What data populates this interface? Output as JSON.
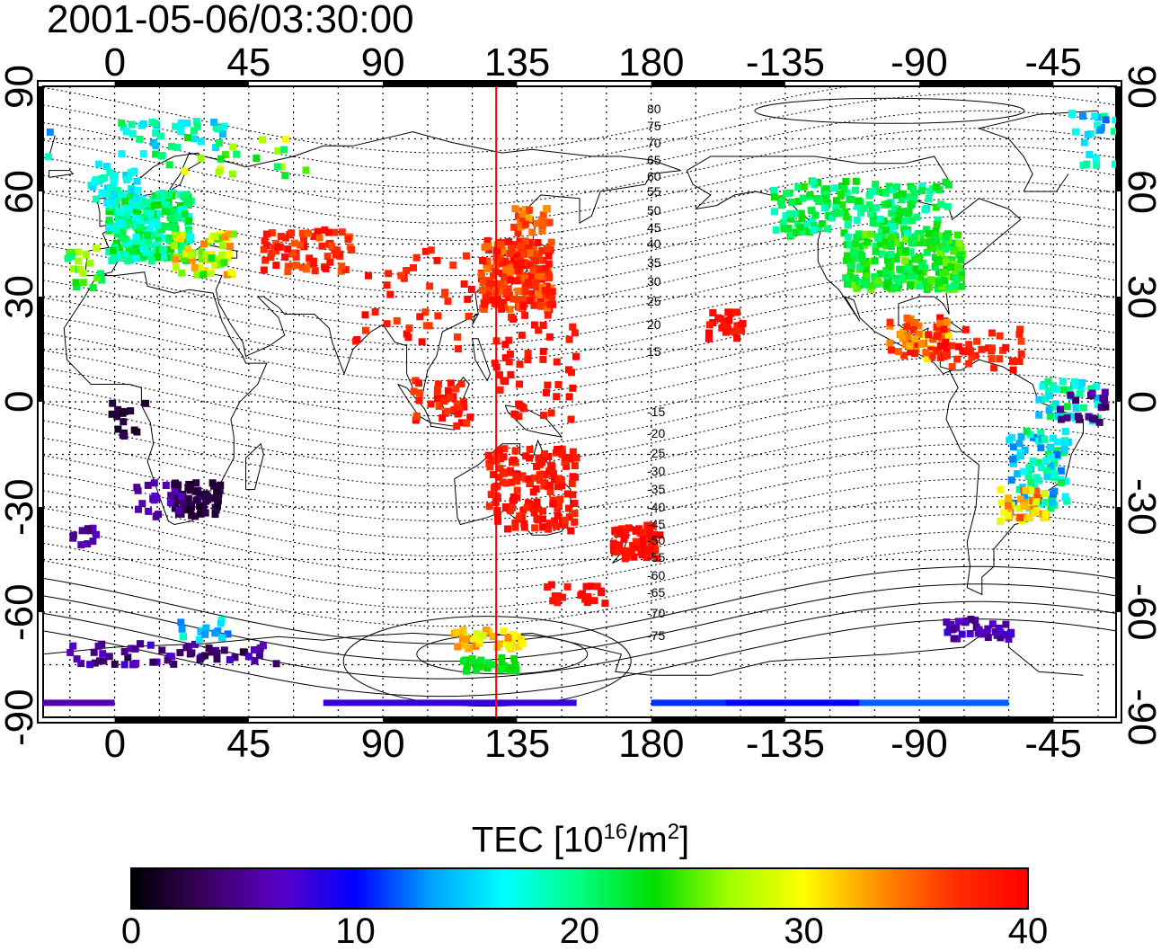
{
  "title": "2001-05-06/03:30:00",
  "top_lon_ticks": [
    "0",
    "45",
    "90",
    "135",
    "180",
    "-135",
    "-90",
    "-45"
  ],
  "bottom_lon_ticks": [
    "0",
    "45",
    "90",
    "135",
    "180",
    "-135",
    "-90",
    "-45"
  ],
  "lat_ticks": [
    "90",
    "60",
    "30",
    "0",
    "-30",
    "-60",
    "-90"
  ],
  "magnetic_lat_labels_north": [
    "80",
    "75",
    "70",
    "65",
    "60",
    "55",
    "50",
    "45",
    "40",
    "35",
    "30",
    "25",
    "20",
    "15"
  ],
  "magnetic_lat_labels_south": [
    "-15",
    "-20",
    "-25",
    "-30",
    "-35",
    "-40",
    "-45",
    "-50",
    "-55",
    "-60",
    "-65",
    "-70",
    "-75"
  ],
  "colorbar": {
    "title_prefix": "TEC  [10",
    "title_exp1": "16",
    "title_mid": "/m",
    "title_exp2": "2",
    "title_suffix": "]",
    "ticks": [
      "0",
      "10",
      "20",
      "30",
      "40"
    ],
    "colors": [
      "#000000",
      "#3a0060",
      "#5a00c8",
      "#0000ff",
      "#00a0ff",
      "#00ffff",
      "#00ff80",
      "#00dd00",
      "#a0ff00",
      "#ffff00",
      "#ff9000",
      "#ff3000",
      "#ff0000"
    ]
  },
  "meridian_marker_lon": 128
}
